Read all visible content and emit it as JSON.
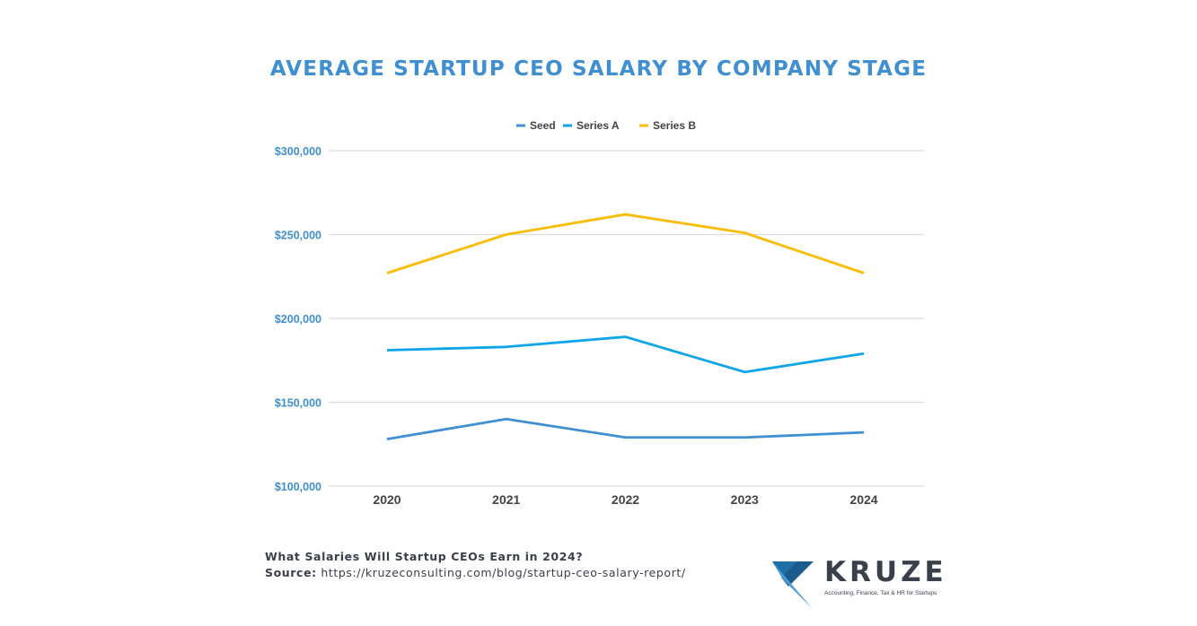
{
  "chart_data": {
    "type": "line",
    "title": "AVERAGE STARTUP CEO SALARY BY COMPANY STAGE",
    "xlabel": "",
    "ylabel": "",
    "categories": [
      "2020",
      "2021",
      "2022",
      "2023",
      "2024"
    ],
    "ylim": [
      100000,
      300000
    ],
    "yticks": [
      100000,
      150000,
      200000,
      250000,
      300000
    ],
    "ytick_labels": [
      "$100,000",
      "$150,000",
      "$200,000",
      "$250,000",
      "$300,000"
    ],
    "grid": true,
    "legend_position": "top",
    "series": [
      {
        "name": "Seed",
        "color": "#3f8fd2",
        "values": [
          128000,
          140000,
          129000,
          129000,
          132000
        ]
      },
      {
        "name": "Series A",
        "color": "#0ea5e9",
        "values": [
          181000,
          183000,
          189000,
          168000,
          179000
        ]
      },
      {
        "name": "Series B",
        "color": "#fbbc04",
        "values": [
          227000,
          250000,
          262000,
          251000,
          227000
        ]
      }
    ]
  },
  "footer": {
    "question": "What Salaries Will Startup CEOs Earn in 2024?",
    "source_label": "Source:",
    "source_url": "https://kruzeconsulting.com/blog/startup-ceo-salary-report/"
  },
  "logo": {
    "name": "KRUZE",
    "tagline": "Accounting, Finance, Tax & HR for Startups"
  }
}
